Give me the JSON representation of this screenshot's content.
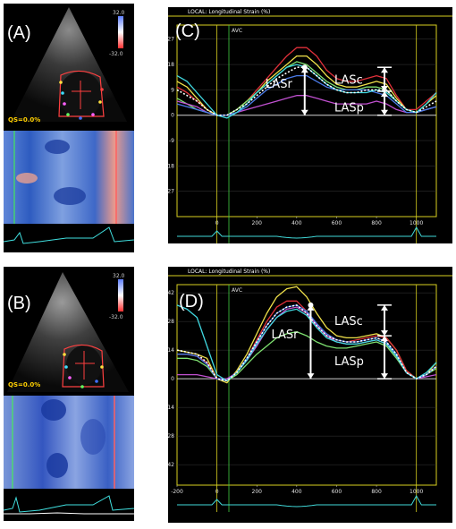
{
  "panels": {
    "A": {
      "label": "(A)",
      "qs": "QS=0.0%",
      "scale_top": "32.0",
      "scale_bottom": "-32.0"
    },
    "B": {
      "label": "(B)",
      "qs": "QS=0.0%",
      "scale_top": "32.0",
      "scale_bottom": "-32.0"
    }
  },
  "chart_data": [
    {
      "id": "C",
      "type": "line",
      "panel_label": "(C)",
      "header": "LOCAL: Longitudinal Strain (%)",
      "avc_label": "AVC",
      "xlim": [
        -200,
        1100
      ],
      "ylim": [
        -36,
        32
      ],
      "x_ticks": [
        "0",
        "200",
        "400",
        "600",
        "800",
        "1000"
      ],
      "y_ticks": [
        "27",
        "18",
        "9",
        "0",
        "-9",
        "-18",
        "-27"
      ],
      "x": [
        -200,
        -150,
        -100,
        -50,
        0,
        50,
        100,
        150,
        200,
        250,
        300,
        350,
        400,
        450,
        500,
        550,
        600,
        650,
        700,
        750,
        800,
        850,
        900,
        950,
        1000,
        1050,
        1100
      ],
      "series": [
        {
          "color": "#e0303a",
          "values": [
            10,
            8,
            5,
            2,
            0,
            0,
            2,
            5,
            9,
            13,
            17,
            21,
            24,
            24,
            21,
            16,
            13,
            12,
            12,
            13,
            14,
            13,
            7,
            2,
            2,
            5,
            8
          ]
        },
        {
          "color": "#f0e14a",
          "values": [
            12,
            10,
            6,
            2,
            0,
            0,
            2,
            5,
            8,
            12,
            15,
            18,
            21,
            21,
            18,
            14,
            11,
            10,
            10,
            11,
            12,
            11,
            6,
            2,
            1,
            4,
            7
          ]
        },
        {
          "color": "#7ee070",
          "values": [
            6,
            4,
            2,
            1,
            0,
            0,
            2,
            5,
            8,
            11,
            14,
            17,
            19,
            18,
            15,
            12,
            10,
            9,
            9,
            10,
            10,
            9,
            5,
            2,
            1,
            2,
            3
          ]
        },
        {
          "color": "#c050d0",
          "values": [
            5,
            4,
            3,
            1,
            0,
            0,
            1,
            2,
            3,
            4,
            5,
            6,
            7,
            7,
            6,
            5,
            4,
            4,
            4,
            4,
            5,
            4,
            2,
            1,
            1,
            2,
            3
          ]
        },
        {
          "color": "#4a7ae8",
          "values": [
            4,
            3,
            2,
            1,
            0,
            0,
            1,
            3,
            6,
            9,
            11,
            13,
            14,
            14,
            12,
            10,
            9,
            9,
            9,
            9,
            8,
            7,
            4,
            1,
            1,
            2,
            3
          ]
        },
        {
          "color": "#40d8e0",
          "values": [
            14,
            12,
            8,
            4,
            0,
            -1,
            1,
            4,
            8,
            11,
            14,
            17,
            18,
            17,
            14,
            11,
            9,
            8,
            8,
            8,
            9,
            8,
            5,
            2,
            1,
            4,
            8
          ]
        },
        {
          "color": "#ffffff",
          "dashed": true,
          "values": [
            9,
            7,
            5,
            2,
            0,
            0,
            2,
            4,
            7,
            10,
            13,
            15,
            17,
            17,
            14,
            11,
            9,
            8,
            8,
            9,
            9,
            9,
            5,
            2,
            1,
            3,
            5
          ]
        }
      ],
      "annotations": {
        "LASr": "LASr",
        "LASc": "LASc",
        "LASp": "LASp"
      },
      "markers": {
        "peak": [
          440,
          17
        ],
        "pre_a": [
          800,
          8.5
        ],
        "baseline": [
          0,
          0
        ]
      }
    },
    {
      "id": "D",
      "type": "line",
      "panel_label": "(D)",
      "header": "LOCAL: Longitudinal Strain (%)",
      "avc_label": "AVC",
      "xlim": [
        -200,
        1100
      ],
      "ylim": [
        -52,
        46
      ],
      "x_ticks": [
        "-200",
        "0",
        "200",
        "400",
        "600",
        "800",
        "1000"
      ],
      "y_ticks": [
        "42",
        "28",
        "14",
        "0",
        "-14",
        "-28",
        "-42"
      ],
      "x": [
        -200,
        -150,
        -100,
        -50,
        0,
        50,
        100,
        150,
        200,
        250,
        300,
        350,
        400,
        450,
        500,
        550,
        600,
        650,
        700,
        750,
        800,
        850,
        900,
        950,
        1000,
        1050,
        1100
      ],
      "series": [
        {
          "color": "#f0e14a",
          "values": [
            14,
            13,
            12,
            10,
            0,
            -2,
            4,
            12,
            22,
            32,
            40,
            44,
            45,
            40,
            32,
            25,
            21,
            20,
            20,
            21,
            22,
            20,
            14,
            4,
            0,
            2,
            8
          ]
        },
        {
          "color": "#e0303a",
          "values": [
            12,
            12,
            11,
            8,
            0,
            -1,
            3,
            10,
            19,
            28,
            35,
            38,
            38,
            33,
            26,
            21,
            19,
            18,
            19,
            20,
            21,
            20,
            14,
            4,
            0,
            2,
            6
          ]
        },
        {
          "color": "#7ee070",
          "values": [
            10,
            10,
            9,
            6,
            0,
            -1,
            2,
            7,
            12,
            16,
            20,
            22,
            23,
            21,
            18,
            16,
            15,
            15,
            16,
            17,
            18,
            16,
            10,
            3,
            0,
            2,
            5
          ]
        },
        {
          "color": "#c050d0",
          "values": [
            2,
            2,
            2,
            1,
            0,
            0,
            3,
            9,
            16,
            24,
            30,
            34,
            35,
            32,
            26,
            21,
            18,
            17,
            17,
            18,
            19,
            17,
            11,
            3,
            0,
            1,
            2
          ]
        },
        {
          "color": "#4a7ae8",
          "values": [
            12,
            12,
            11,
            7,
            0,
            -1,
            3,
            10,
            18,
            26,
            32,
            35,
            36,
            33,
            27,
            22,
            19,
            18,
            18,
            19,
            20,
            18,
            12,
            3,
            0,
            2,
            6
          ]
        },
        {
          "color": "#40d8e0",
          "values": [
            36,
            34,
            30,
            16,
            2,
            -1,
            3,
            9,
            17,
            24,
            30,
            33,
            34,
            31,
            25,
            20,
            18,
            17,
            17,
            18,
            19,
            17,
            11,
            3,
            0,
            3,
            8
          ]
        },
        {
          "color": "#ffffff",
          "dashed": true,
          "values": [
            14,
            13,
            12,
            8,
            0,
            -1,
            3,
            10,
            18,
            26,
            32,
            35,
            36,
            32,
            26,
            21,
            19,
            18,
            18,
            19,
            20,
            18,
            12,
            3,
            0,
            2,
            6
          ]
        }
      ],
      "annotations": {
        "LASr": "LASr",
        "LASc": "LASc",
        "LASp": "LASp"
      },
      "markers": {
        "peak": [
          470,
          36
        ],
        "pre_a": [
          800,
          21
        ],
        "baseline": [
          0,
          0
        ]
      }
    }
  ]
}
